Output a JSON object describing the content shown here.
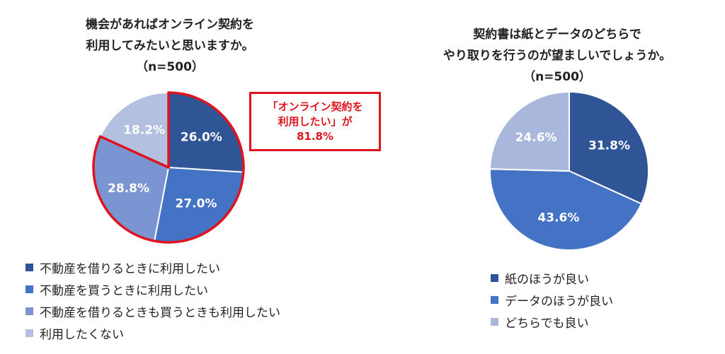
{
  "chart_data": [
    {
      "type": "pie",
      "title": "機会があればオンライン契約を利用してみたいと思いますか。",
      "title_lines": [
        "機会があればオンライン契約を",
        "利用してみたいと思いますか。"
      ],
      "subtitle": "（n=500）",
      "categories": [
        "不動産を借りるときに利用したい",
        "不動産を買うときに利用したい",
        "不動産を借りるときも買うときも利用したい",
        "利用したくない"
      ],
      "values": [
        26.0,
        27.0,
        28.8,
        18.2
      ],
      "labels": [
        "26.0%",
        "27.0%",
        "28.8%",
        "18.2%"
      ],
      "colors": [
        "#2f5597",
        "#4472c4",
        "#7b94d2",
        "#b4c0e0"
      ],
      "legend_position": "bottom-left",
      "highlight": {
        "color": "#e0141e",
        "lines": [
          "「オンライン契約を",
          "利用したい」が",
          "81.8%"
        ]
      }
    },
    {
      "type": "pie",
      "title": "契約書は紙とデータのどちらでやり取りを行うのが望ましいでしょうか。",
      "title_lines": [
        "契約書は紙とデータのどちらで",
        "やり取りを行うのが望ましいでしょうか。"
      ],
      "subtitle": "（n=500）",
      "categories": [
        "紙のほうが良い",
        "データのほうが良い",
        "どちらでも良い"
      ],
      "values": [
        31.8,
        43.6,
        24.6
      ],
      "labels": [
        "31.8%",
        "43.6%",
        "24.6%"
      ],
      "colors": [
        "#2f5597",
        "#4472c4",
        "#a9b7dd"
      ],
      "legend_position": "bottom"
    }
  ]
}
